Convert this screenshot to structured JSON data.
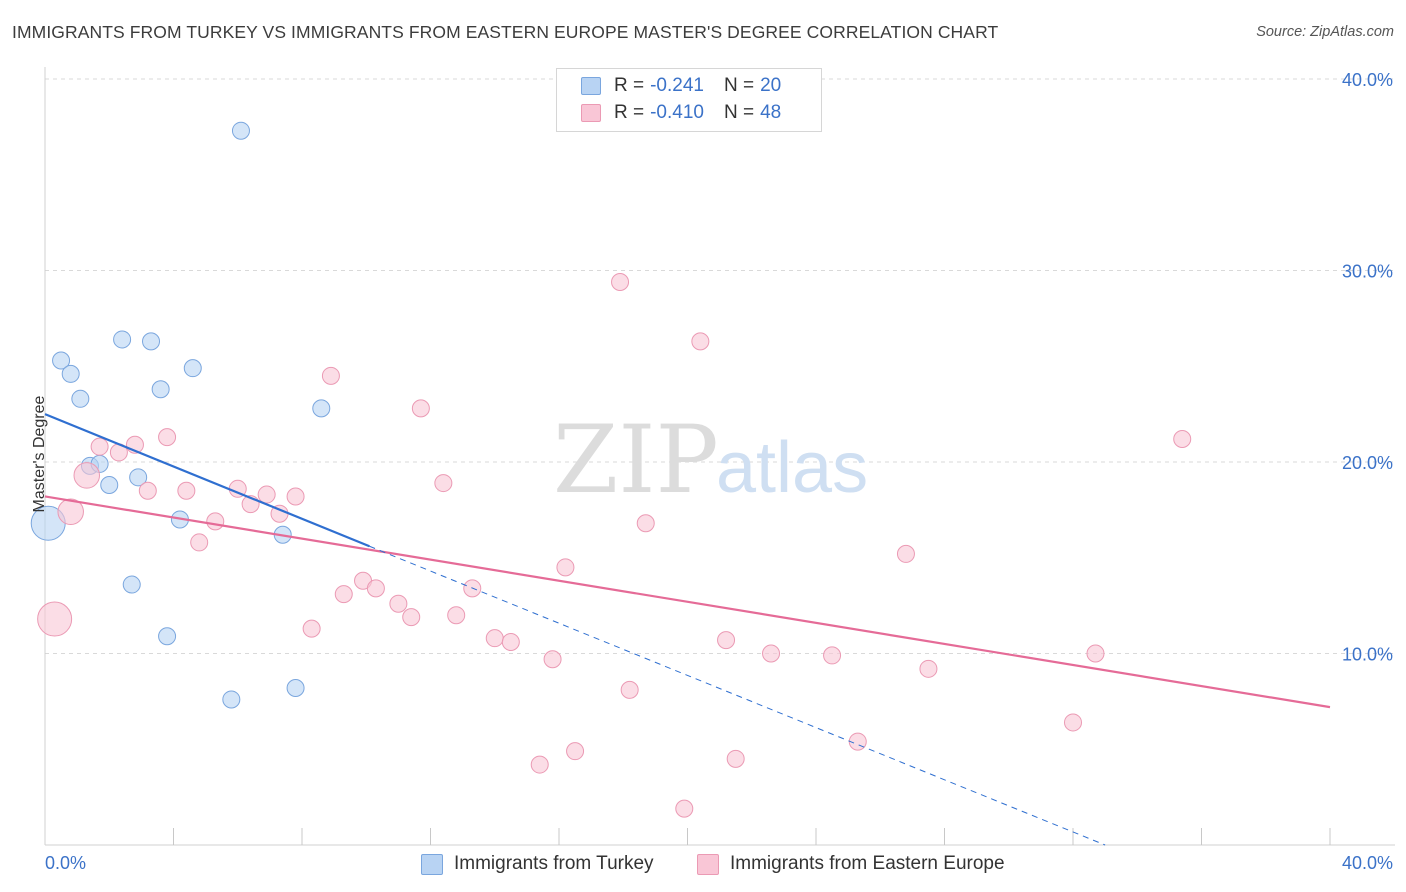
{
  "title": "IMMIGRANTS FROM TURKEY VS IMMIGRANTS FROM EASTERN EUROPE MASTER'S DEGREE CORRELATION CHART",
  "source": "Source: ZipAtlas.com",
  "watermark": {
    "zip": "ZIP",
    "atlas": "atlas"
  },
  "colors": {
    "blue_fill": "#b8d3f3",
    "blue_stroke": "#7aa6de",
    "blue_line": "#2f6fd0",
    "pink_fill": "#f9c6d6",
    "pink_stroke": "#eb9ab4",
    "pink_line": "#e56b97",
    "axis_text": "#3b72c8",
    "grid": "#d9d9d9"
  },
  "legend": {
    "turkey": {
      "r_label": "R =",
      "r_value": "-0.241",
      "n_label": "N =",
      "n_value": "20"
    },
    "eastern_europe": {
      "r_label": "R =",
      "r_value": "-0.410",
      "n_label": "N =",
      "n_value": "48"
    }
  },
  "bottom_legend": {
    "turkey": "Immigrants from Turkey",
    "eastern_europe": "Immigrants from Eastern Europe"
  },
  "chart_data": {
    "type": "scatter",
    "title": "IMMIGRANTS FROM TURKEY VS IMMIGRANTS FROM EASTERN EUROPE MASTER'S DEGREE CORRELATION CHART",
    "xlabel": "",
    "ylabel": "Master's Degree",
    "xlim": [
      0,
      40
    ],
    "ylim": [
      0,
      40
    ],
    "x_tick_labels": [
      "0.0%",
      "40.0%"
    ],
    "y_ticks": [
      10,
      20,
      30,
      40
    ],
    "y_tick_labels": [
      "10.0%",
      "20.0%",
      "30.0%",
      "40.0%"
    ],
    "grid": true,
    "series": [
      {
        "name": "Immigrants from Turkey",
        "color": "blue",
        "points": [
          {
            "x": 6.1,
            "y": 37.3,
            "s": 1
          },
          {
            "x": 2.4,
            "y": 26.4,
            "s": 1
          },
          {
            "x": 3.3,
            "y": 26.3,
            "s": 1
          },
          {
            "x": 0.5,
            "y": 25.3,
            "s": 1
          },
          {
            "x": 0.8,
            "y": 24.6,
            "s": 1
          },
          {
            "x": 4.6,
            "y": 24.9,
            "s": 1
          },
          {
            "x": 3.6,
            "y": 23.8,
            "s": 1
          },
          {
            "x": 1.1,
            "y": 23.3,
            "s": 1
          },
          {
            "x": 8.6,
            "y": 22.8,
            "s": 1
          },
          {
            "x": 1.4,
            "y": 19.8,
            "s": 1
          },
          {
            "x": 1.7,
            "y": 19.9,
            "s": 1
          },
          {
            "x": 2.0,
            "y": 18.8,
            "s": 1
          },
          {
            "x": 2.9,
            "y": 19.2,
            "s": 1
          },
          {
            "x": 4.2,
            "y": 17.0,
            "s": 1
          },
          {
            "x": 0.1,
            "y": 16.8,
            "s": 2
          },
          {
            "x": 7.4,
            "y": 16.2,
            "s": 1
          },
          {
            "x": 2.7,
            "y": 13.6,
            "s": 1
          },
          {
            "x": 3.8,
            "y": 10.9,
            "s": 1
          },
          {
            "x": 7.8,
            "y": 8.2,
            "s": 1
          },
          {
            "x": 5.8,
            "y": 7.6,
            "s": 1
          }
        ],
        "trendline": {
          "x": [
            0,
            10.1
          ],
          "y": [
            22.5,
            15.6
          ],
          "dashed_extension": {
            "x": [
              10.1,
              33
            ],
            "y": [
              15.6,
              0.0
            ]
          }
        }
      },
      {
        "name": "Immigrants from Eastern Europe",
        "color": "pink",
        "points": [
          {
            "x": 17.9,
            "y": 29.4,
            "s": 1
          },
          {
            "x": 20.4,
            "y": 26.3,
            "s": 1
          },
          {
            "x": 8.9,
            "y": 24.5,
            "s": 1
          },
          {
            "x": 11.7,
            "y": 22.8,
            "s": 1
          },
          {
            "x": 35.4,
            "y": 21.2,
            "s": 1
          },
          {
            "x": 3.8,
            "y": 21.3,
            "s": 1
          },
          {
            "x": 1.7,
            "y": 20.8,
            "s": 1
          },
          {
            "x": 2.8,
            "y": 20.9,
            "s": 1
          },
          {
            "x": 2.3,
            "y": 20.5,
            "s": 1
          },
          {
            "x": 1.3,
            "y": 19.3,
            "s": 1.5
          },
          {
            "x": 12.4,
            "y": 18.9,
            "s": 1
          },
          {
            "x": 3.2,
            "y": 18.5,
            "s": 1
          },
          {
            "x": 4.4,
            "y": 18.5,
            "s": 1
          },
          {
            "x": 6.0,
            "y": 18.6,
            "s": 1
          },
          {
            "x": 6.9,
            "y": 18.3,
            "s": 1
          },
          {
            "x": 7.8,
            "y": 18.2,
            "s": 1
          },
          {
            "x": 6.4,
            "y": 17.8,
            "s": 1
          },
          {
            "x": 0.8,
            "y": 17.4,
            "s": 1.5
          },
          {
            "x": 7.3,
            "y": 17.3,
            "s": 1
          },
          {
            "x": 5.3,
            "y": 16.9,
            "s": 1
          },
          {
            "x": 18.7,
            "y": 16.8,
            "s": 1
          },
          {
            "x": 4.8,
            "y": 15.8,
            "s": 1
          },
          {
            "x": 26.8,
            "y": 15.2,
            "s": 1
          },
          {
            "x": 16.2,
            "y": 14.5,
            "s": 1
          },
          {
            "x": 9.9,
            "y": 13.8,
            "s": 1
          },
          {
            "x": 10.3,
            "y": 13.4,
            "s": 1
          },
          {
            "x": 13.3,
            "y": 13.4,
            "s": 1
          },
          {
            "x": 9.3,
            "y": 13.1,
            "s": 1
          },
          {
            "x": 11.0,
            "y": 12.6,
            "s": 1
          },
          {
            "x": 0.3,
            "y": 11.8,
            "s": 2
          },
          {
            "x": 11.4,
            "y": 11.9,
            "s": 1
          },
          {
            "x": 12.8,
            "y": 12.0,
            "s": 1
          },
          {
            "x": 8.3,
            "y": 11.3,
            "s": 1
          },
          {
            "x": 14.0,
            "y": 10.8,
            "s": 1
          },
          {
            "x": 14.5,
            "y": 10.6,
            "s": 1
          },
          {
            "x": 21.2,
            "y": 10.7,
            "s": 1
          },
          {
            "x": 22.6,
            "y": 10.0,
            "s": 1
          },
          {
            "x": 24.5,
            "y": 9.9,
            "s": 1
          },
          {
            "x": 32.7,
            "y": 10.0,
            "s": 1
          },
          {
            "x": 15.8,
            "y": 9.7,
            "s": 1
          },
          {
            "x": 27.5,
            "y": 9.2,
            "s": 1
          },
          {
            "x": 18.2,
            "y": 8.1,
            "s": 1
          },
          {
            "x": 32.0,
            "y": 6.4,
            "s": 1
          },
          {
            "x": 25.3,
            "y": 5.4,
            "s": 1
          },
          {
            "x": 16.5,
            "y": 4.9,
            "s": 1
          },
          {
            "x": 21.5,
            "y": 4.5,
            "s": 1
          },
          {
            "x": 15.4,
            "y": 4.2,
            "s": 1
          },
          {
            "x": 19.9,
            "y": 1.9,
            "s": 1
          }
        ],
        "trendline": {
          "x": [
            0,
            40
          ],
          "y": [
            18.2,
            7.2
          ]
        }
      }
    ]
  }
}
